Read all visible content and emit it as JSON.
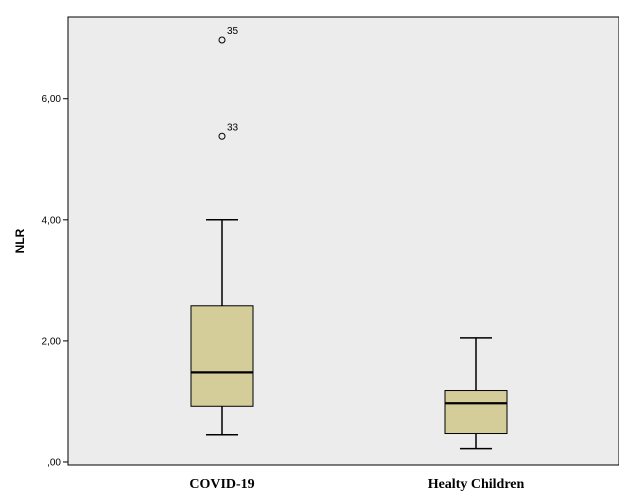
{
  "chart_data": {
    "type": "boxplot",
    "ylabel": "NLR",
    "ylim": [
      -0.05,
      7.35
    ],
    "yticks": [
      {
        "value": 0,
        "label": ",00"
      },
      {
        "value": 2,
        "label": "2,00"
      },
      {
        "value": 4,
        "label": "4,00"
      },
      {
        "value": 6,
        "label": "6,00"
      }
    ],
    "grid": false,
    "categories": [
      "COVID-19",
      "Healty Children"
    ],
    "boxes": [
      {
        "category": "COVID-19",
        "whisker_low": 0.45,
        "q1": 0.92,
        "median": 1.48,
        "q3": 2.58,
        "whisker_high": 4.0,
        "outliers": [
          {
            "value": 6.97,
            "label": "35"
          },
          {
            "value": 5.38,
            "label": "33"
          }
        ]
      },
      {
        "category": "Healty Children",
        "whisker_low": 0.22,
        "q1": 0.47,
        "median": 0.97,
        "q3": 1.18,
        "whisker_high": 2.05,
        "outliers": []
      }
    ],
    "colors": {
      "plot_background": "#ececec",
      "box_fill": "#d4cd99",
      "line": "#000000"
    }
  }
}
